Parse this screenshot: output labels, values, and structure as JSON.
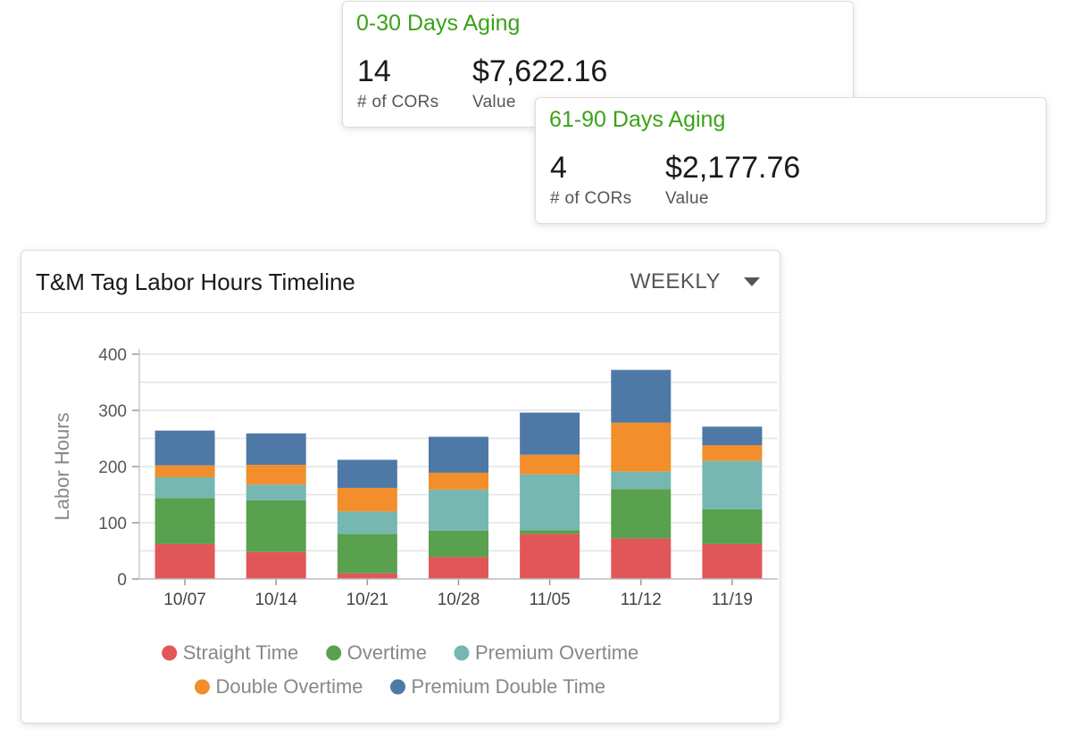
{
  "cards": [
    {
      "title": "0-30 Days Aging",
      "count": "14",
      "count_label": "# of CORs",
      "value": "$7,622.16",
      "value_label": "Value"
    },
    {
      "title": "61-90 Days Aging",
      "count": "4",
      "count_label": "# of CORs",
      "value": "$2,177.76",
      "value_label": "Value"
    }
  ],
  "chart_panel": {
    "title": "T&M Tag Labor Hours Timeline",
    "period": "WEEKLY"
  },
  "chart_data": {
    "type": "bar",
    "stacked": true,
    "title": "T&M Tag Labor Hours Timeline",
    "xlabel": "",
    "ylabel": "Labor Hours",
    "ylim": [
      0,
      400
    ],
    "yticks": [
      0,
      100,
      200,
      300,
      400
    ],
    "grid": true,
    "legend_position": "bottom",
    "categories": [
      "10/07",
      "10/14",
      "10/21",
      "10/28",
      "11/05",
      "11/12",
      "11/19"
    ],
    "series": [
      {
        "name": "Straight Time",
        "color": "#e15759",
        "values": [
          62,
          48,
          10,
          39,
          80,
          72,
          62
        ]
      },
      {
        "name": "Overtime",
        "color": "#59a14f",
        "values": [
          82,
          92,
          70,
          47,
          7,
          88,
          62
        ]
      },
      {
        "name": "Premium Overtime",
        "color": "#76b7b2",
        "values": [
          37,
          28,
          40,
          73,
          99,
          31,
          86
        ]
      },
      {
        "name": "Double Overtime",
        "color": "#f28e2b",
        "values": [
          21,
          35,
          42,
          30,
          35,
          87,
          28
        ]
      },
      {
        "name": "Premium Double Time",
        "color": "#4e79a7",
        "values": [
          62,
          56,
          50,
          64,
          75,
          94,
          33
        ]
      }
    ]
  }
}
